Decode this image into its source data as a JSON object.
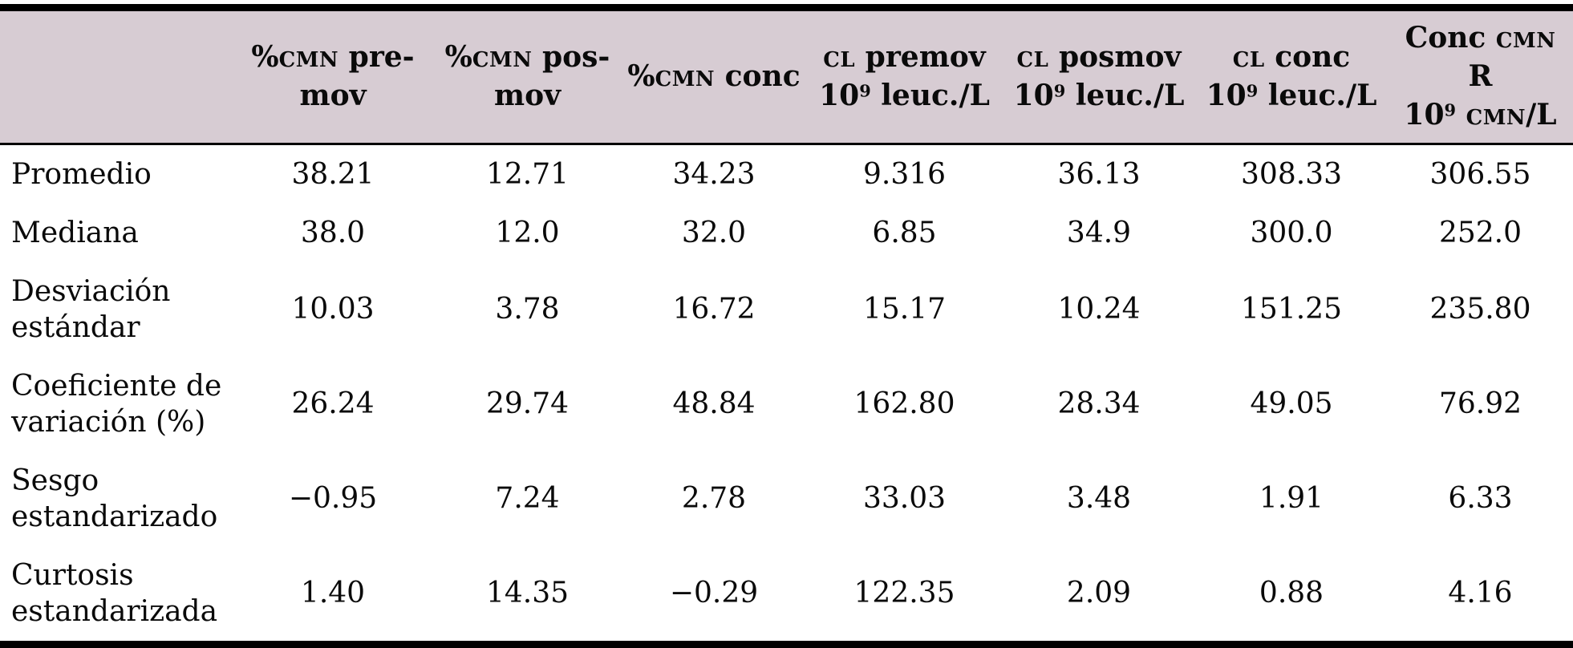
{
  "table": {
    "name": "statistical-summary-table",
    "colors": {
      "header_bg": "#d7ccd3",
      "rule": "#000000",
      "text": "#0a0a0a",
      "body_bg": "#ffffff"
    },
    "columns": [
      {
        "id": "pct-cmn-premov",
        "lines": [
          [
            {
              "t": "%"
            },
            {
              "t": "CMN",
              "small": true
            },
            {
              "t": " pre-"
            }
          ],
          [
            {
              "t": "mov"
            }
          ]
        ]
      },
      {
        "id": "pct-cmn-posmov",
        "lines": [
          [
            {
              "t": "%"
            },
            {
              "t": "CMN",
              "small": true
            },
            {
              "t": " pos-"
            }
          ],
          [
            {
              "t": "mov"
            }
          ]
        ]
      },
      {
        "id": "pct-cmn-conc",
        "lines": [
          [
            {
              "t": "%"
            },
            {
              "t": "CMN",
              "small": true
            },
            {
              "t": " conc"
            }
          ]
        ]
      },
      {
        "id": "cl-premov",
        "lines": [
          [
            {
              "t": "CL",
              "small": true
            },
            {
              "t": " premov"
            }
          ],
          [
            {
              "t": "10"
            },
            {
              "t": "9",
              "sup": true
            },
            {
              "t": " leuc./L"
            }
          ]
        ]
      },
      {
        "id": "cl-posmov",
        "lines": [
          [
            {
              "t": "CL",
              "small": true
            },
            {
              "t": " posmov"
            }
          ],
          [
            {
              "t": "10"
            },
            {
              "t": "9",
              "sup": true
            },
            {
              "t": " leuc./L"
            }
          ]
        ]
      },
      {
        "id": "cl-conc",
        "lines": [
          [
            {
              "t": "CL",
              "small": true
            },
            {
              "t": " conc"
            }
          ],
          [
            {
              "t": "10"
            },
            {
              "t": "9",
              "sup": true
            },
            {
              "t": " leuc./L"
            }
          ]
        ]
      },
      {
        "id": "conc-cmn-r",
        "lines": [
          [
            {
              "t": "Conc "
            },
            {
              "t": "CMN",
              "small": true
            },
            {
              "t": " R"
            }
          ],
          [
            {
              "t": "10"
            },
            {
              "t": "9",
              "sup": true
            },
            {
              "t": " "
            },
            {
              "t": "CMN",
              "small": true
            },
            {
              "t": "/L"
            }
          ]
        ]
      }
    ],
    "rows": [
      {
        "label": "Promedio",
        "values": [
          "38.21",
          "12.71",
          "34.23",
          "9.316",
          "36.13",
          "308.33",
          "306.55"
        ]
      },
      {
        "label": "Mediana",
        "values": [
          "38.0",
          "12.0",
          "32.0",
          "6.85",
          "34.9",
          "300.0",
          "252.0"
        ]
      },
      {
        "label": "Desviación estándar",
        "values": [
          "10.03",
          "3.78",
          "16.72",
          "15.17",
          "10.24",
          "151.25",
          "235.80"
        ]
      },
      {
        "label": "Coeficiente de variación (%)",
        "values": [
          "26.24",
          "29.74",
          "48.84",
          "162.80",
          "28.34",
          "49.05",
          "76.92"
        ]
      },
      {
        "label": "Sesgo estandarizado",
        "values": [
          "−0.95",
          "7.24",
          "2.78",
          "33.03",
          "3.48",
          "1.91",
          "6.33"
        ]
      },
      {
        "label": "Curtosis estandarizada",
        "values": [
          "1.40",
          "14.35",
          "−0.29",
          "122.35",
          "2.09",
          "0.88",
          "4.16"
        ]
      }
    ]
  }
}
